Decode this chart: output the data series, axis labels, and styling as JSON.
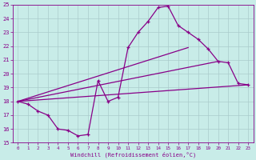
{
  "xlabel": "Windchill (Refroidissement éolien,°C)",
  "bg_color": "#c8ece8",
  "line_color": "#880088",
  "grid_color": "#aacccc",
  "xlim": [
    -0.5,
    23.5
  ],
  "ylim": [
    15,
    25
  ],
  "xticks": [
    0,
    1,
    2,
    3,
    4,
    5,
    6,
    7,
    8,
    9,
    10,
    11,
    12,
    13,
    14,
    15,
    16,
    17,
    18,
    19,
    20,
    21,
    22,
    23
  ],
  "yticks": [
    15,
    16,
    17,
    18,
    19,
    20,
    21,
    22,
    23,
    24,
    25
  ],
  "main_line": {
    "x": [
      0,
      1,
      2,
      3,
      4,
      5,
      6,
      7,
      8,
      9,
      10,
      11,
      12,
      13,
      14,
      15,
      16,
      17,
      18,
      19,
      20,
      21,
      22,
      23
    ],
    "y": [
      18.0,
      17.8,
      17.3,
      17.0,
      16.0,
      15.9,
      15.5,
      15.6,
      19.5,
      18.0,
      18.3,
      21.9,
      23.0,
      23.8,
      24.8,
      24.9,
      23.5,
      23.0,
      22.5,
      21.8,
      20.9,
      20.8,
      19.3,
      19.2
    ]
  },
  "straight_lines": [
    {
      "x": [
        0,
        17
      ],
      "y": [
        18.0,
        21.9
      ]
    },
    {
      "x": [
        0,
        20
      ],
      "y": [
        18.0,
        20.9
      ]
    },
    {
      "x": [
        0,
        23
      ],
      "y": [
        18.0,
        19.2
      ]
    }
  ]
}
